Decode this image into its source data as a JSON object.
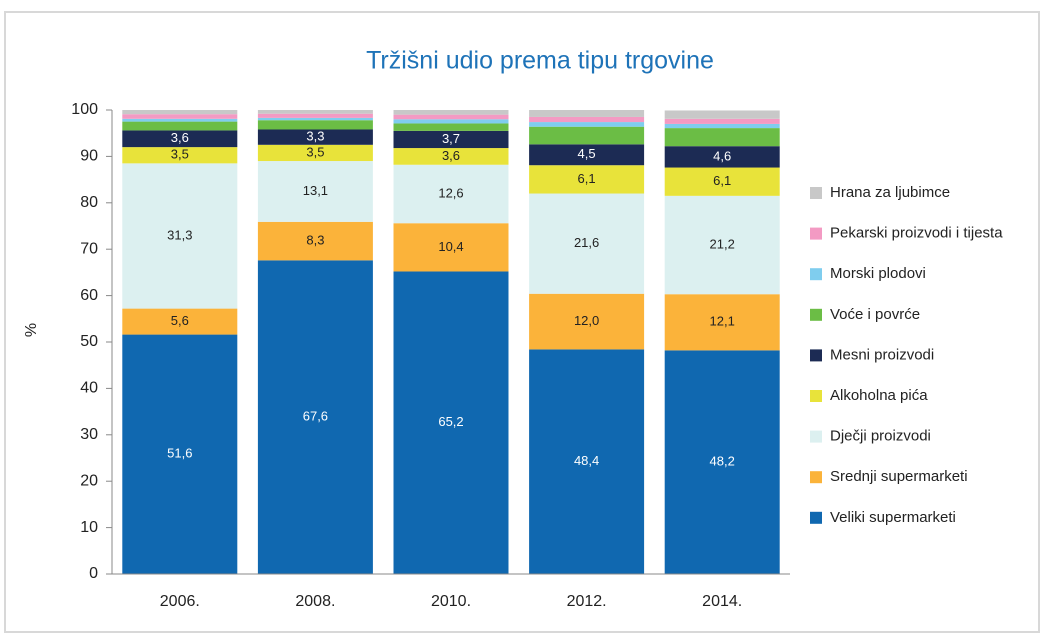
{
  "chart_data": {
    "type": "bar",
    "stacked": true,
    "title": "Tržišni udio prema tipu trgovine",
    "y_label": "%",
    "categories": [
      "2006.",
      "2008.",
      "2010.",
      "2012.",
      "2014."
    ],
    "ylim": [
      0,
      100
    ],
    "yticks": [
      0,
      10,
      20,
      30,
      40,
      50,
      60,
      70,
      80,
      90,
      100
    ],
    "grid": false,
    "legend": "right",
    "series": [
      {
        "name": "Veliki supermarketi",
        "color": "#1068b0",
        "values": [
          51.6,
          67.6,
          65.2,
          48.4,
          48.2
        ],
        "value_labels": [
          "51,6",
          "67,6",
          "65,2",
          "48,4",
          "48,2"
        ]
      },
      {
        "name": "Srednji supermarketi",
        "color": "#fbb33a",
        "values": [
          5.6,
          8.3,
          10.4,
          12.0,
          12.1
        ],
        "value_labels": [
          "5,6",
          "8,3",
          "10,4",
          "12,0",
          "12,1"
        ]
      },
      {
        "name": "Dječji proizvodi",
        "color": "#dcf0f0",
        "values": [
          31.3,
          13.1,
          12.6,
          21.6,
          21.2
        ],
        "value_labels": [
          "31,3",
          "13,1",
          "12,6",
          "21,6",
          "21,2"
        ]
      },
      {
        "name": "Alkoholna pića",
        "color": "#e8e33a",
        "values": [
          3.5,
          3.5,
          3.6,
          6.1,
          6.1
        ],
        "value_labels": [
          "3,5",
          "3,5",
          "3,6",
          "6,1",
          "6,1"
        ]
      },
      {
        "name": "Mesni proizvodi",
        "color": "#1c2b54",
        "values": [
          3.6,
          3.3,
          3.7,
          4.5,
          4.6
        ],
        "value_labels": [
          "3,6",
          "3,3",
          "3,7",
          "4,5",
          "4,6"
        ]
      },
      {
        "name": "Voće i povrće",
        "color": "#6bbd45",
        "values": [
          1.9,
          2.0,
          1.6,
          3.8,
          3.9
        ]
      },
      {
        "name": "Morski plodovi",
        "color": "#7fcdee",
        "values": [
          0.6,
          0.5,
          0.9,
          1.0,
          0.9
        ]
      },
      {
        "name": "Pekarski proizvodi i tijesta",
        "color": "#f39ac3",
        "values": [
          1.0,
          0.9,
          1.0,
          1.1,
          1.1
        ]
      },
      {
        "name": "Hrana za ljubimce",
        "color": "#c8c8c8",
        "values": [
          0.9,
          0.8,
          1.0,
          1.5,
          1.8
        ]
      }
    ]
  }
}
